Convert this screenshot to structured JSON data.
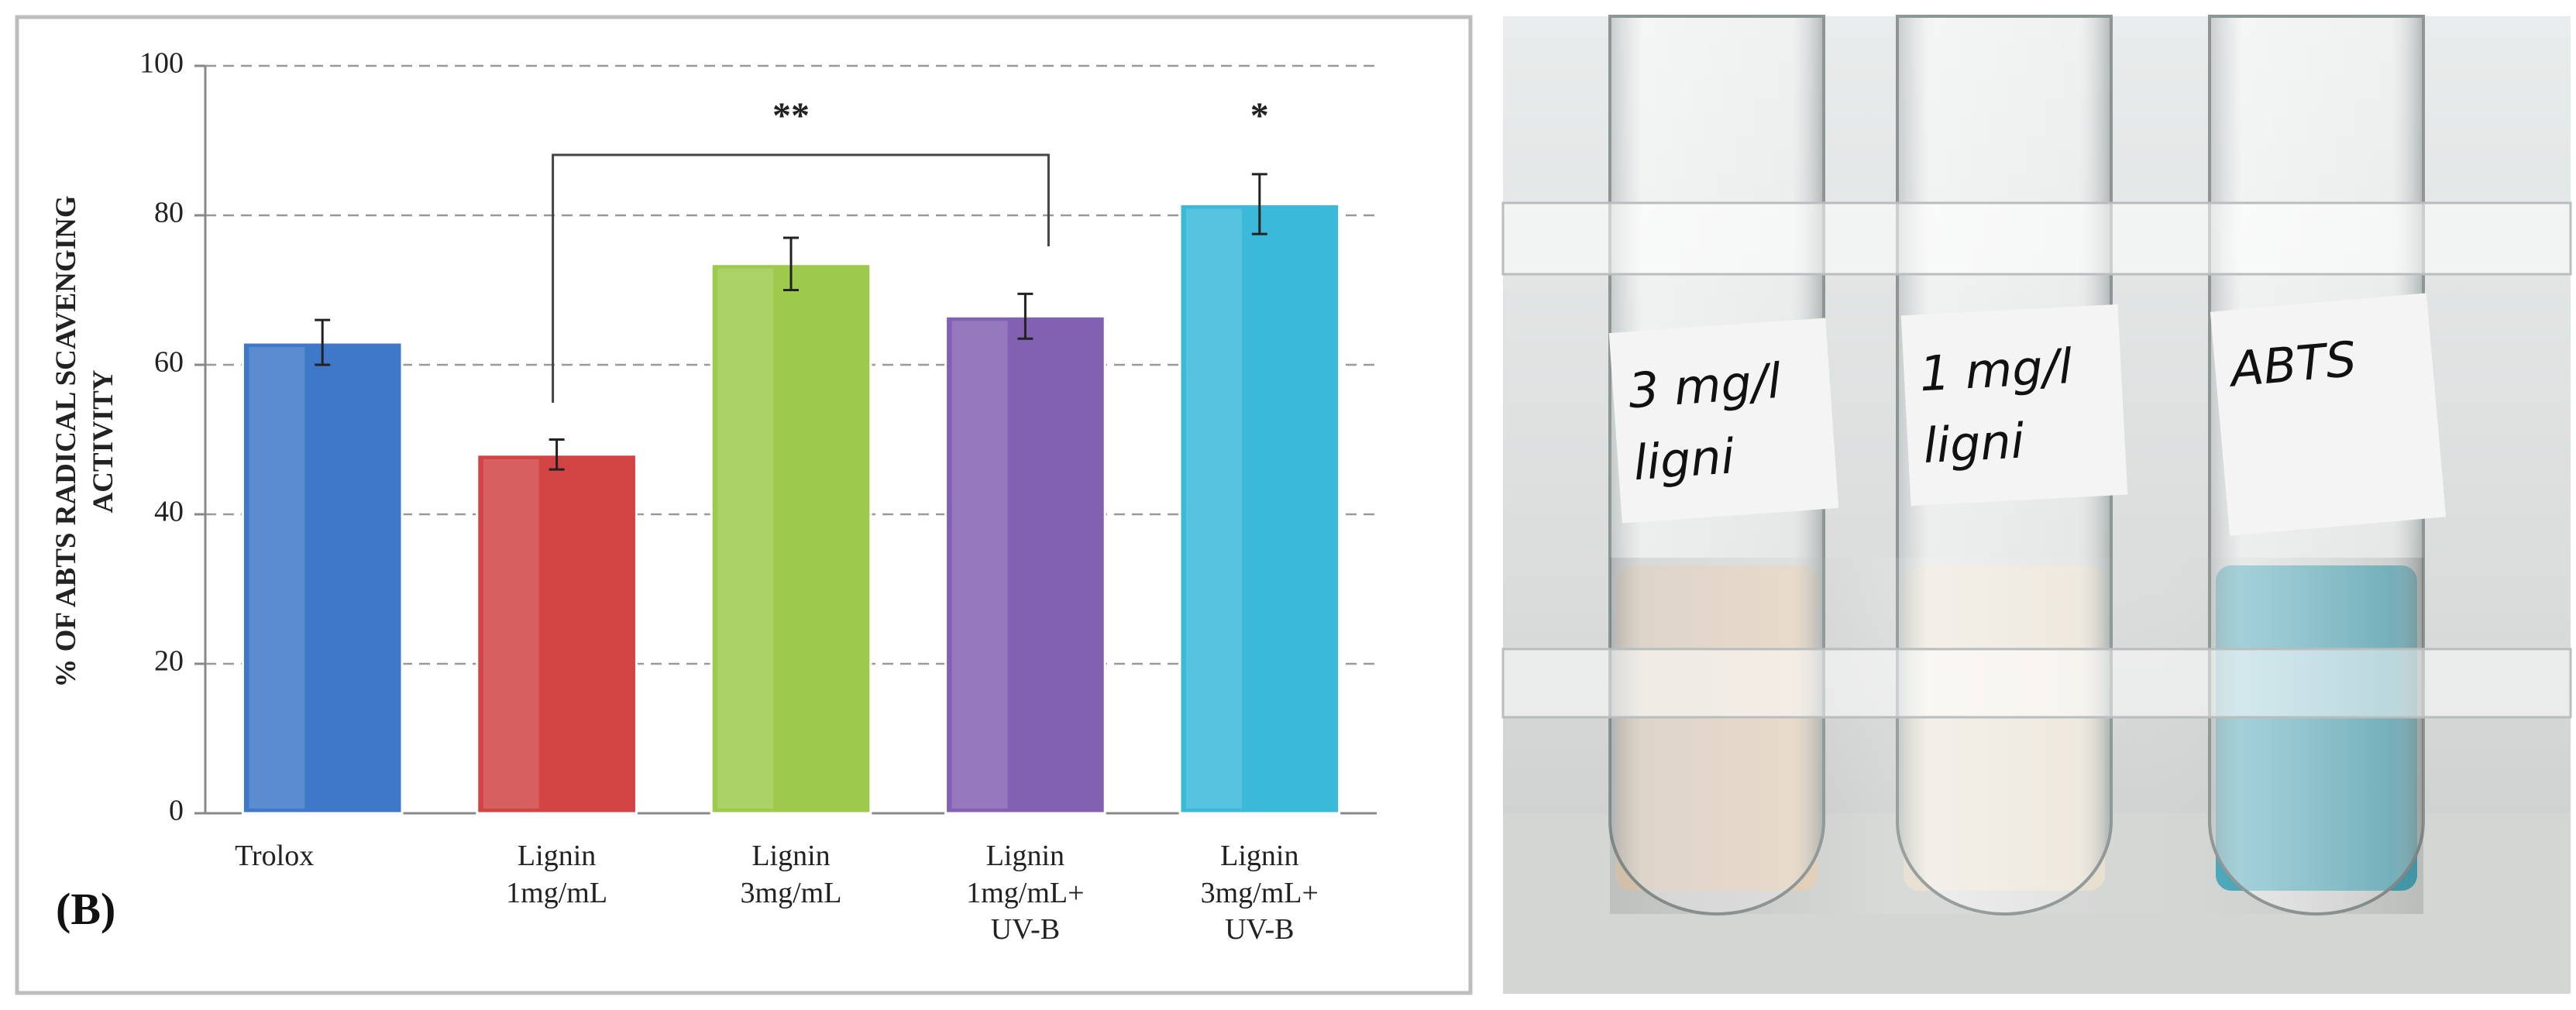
{
  "chart_data": {
    "type": "bar",
    "ylabel": "% OF ABTS RADICAL SCAVENGING\nACTIVITY",
    "panel_label": "(B)",
    "categories": [
      "Trolox",
      "Lignin\n1mg/mL",
      "Lignin\n3mg/mL",
      "Lignin\n1mg/mL+\nUV-B",
      "Lignin\n3mg/mL+\nUV-B"
    ],
    "values": [
      63,
      48,
      73.5,
      66.5,
      81.5
    ],
    "errors": [
      3,
      2,
      3.5,
      3,
      4
    ],
    "colors": [
      "#3f78c8",
      "#d24343",
      "#9dca4c",
      "#8361b2",
      "#3bb9d9"
    ],
    "ylim": [
      0,
      100
    ],
    "yticks": [
      0,
      20,
      40,
      60,
      80,
      100
    ],
    "grid": true,
    "annotations": [
      "**",
      "*"
    ]
  },
  "photo": {
    "labels": [
      "3 mg/l\nligni",
      "1 mg/l\nligni",
      "ABTS"
    ]
  }
}
